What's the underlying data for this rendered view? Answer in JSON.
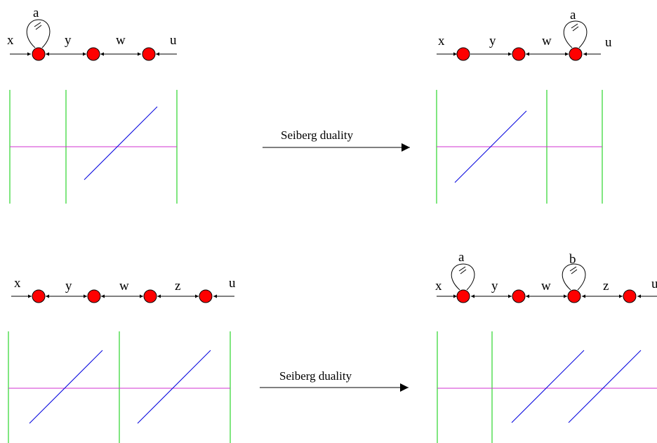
{
  "colors": {
    "node_fill": "#ff0000",
    "node_stroke": "#000000",
    "ns5_brane": "#00cc00",
    "d4_brane": "#d030d0",
    "ns5_prime_brane": "#0000dd",
    "arrow": "#000000"
  },
  "top_left": {
    "labels": {
      "x": "x",
      "y": "y",
      "w": "w",
      "u": "u",
      "a": "a"
    }
  },
  "top_right": {
    "labels": {
      "x": "x",
      "y": "y",
      "w": "w",
      "u": "u",
      "a": "a"
    }
  },
  "bottom_left": {
    "labels": {
      "x": "x",
      "y": "y",
      "w": "w",
      "z": "z",
      "u": "u"
    }
  },
  "bottom_right": {
    "labels": {
      "x": "x",
      "y": "y",
      "w": "w",
      "z": "z",
      "u": "u",
      "a": "a",
      "b": "b"
    }
  },
  "arrows": {
    "top_label": "Seiberg duality",
    "bottom_label": "Seiberg duality"
  }
}
